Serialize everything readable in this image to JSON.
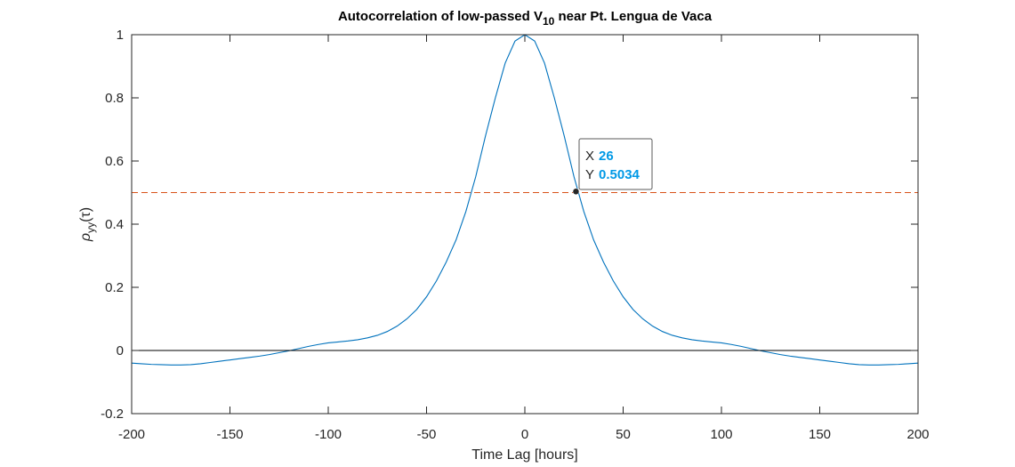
{
  "chart_data": {
    "type": "line",
    "title": {
      "main": "Autocorrelation of low-passed V",
      "subscript": "10",
      "tail": " near Pt. Lengua de Vaca"
    },
    "xlabel": "Time Lag [hours]",
    "ylabel": {
      "symbol": "ρ",
      "subscript": "yy",
      "arg": "(τ)"
    },
    "xlim": [
      -200,
      200
    ],
    "ylim": [
      -0.2,
      1
    ],
    "xticks": [
      -200,
      -150,
      -100,
      -50,
      0,
      50,
      100,
      150,
      200
    ],
    "yticks": [
      -0.2,
      0,
      0.2,
      0.4,
      0.6,
      0.8,
      1
    ],
    "xtick_labels": [
      "-200",
      "-150",
      "-100",
      "-50",
      "0",
      "50",
      "100",
      "150",
      "200"
    ],
    "ytick_labels": [
      "-0.2",
      "0",
      "0.2",
      "0.4",
      "0.6",
      "0.8",
      "1"
    ],
    "grid": false,
    "series": [
      {
        "color": "#0072bd",
        "x": [
          0,
          5,
          10,
          15,
          20,
          25,
          30,
          35,
          40,
          45,
          50,
          55,
          60,
          65,
          70,
          75,
          80,
          85,
          90,
          95,
          100,
          105,
          110,
          115,
          120,
          125,
          130,
          135,
          140,
          145,
          150,
          155,
          160,
          165,
          170,
          175,
          180,
          185,
          190,
          195,
          200
        ],
        "y": [
          1.0,
          0.98,
          0.91,
          0.8,
          0.68,
          0.55,
          0.44,
          0.35,
          0.28,
          0.22,
          0.17,
          0.13,
          0.1,
          0.077,
          0.06,
          0.048,
          0.04,
          0.034,
          0.03,
          0.027,
          0.024,
          0.019,
          0.013,
          0.006,
          -0.001,
          -0.007,
          -0.013,
          -0.018,
          -0.022,
          -0.026,
          -0.03,
          -0.034,
          -0.038,
          -0.042,
          -0.045,
          -0.046,
          -0.046,
          -0.045,
          -0.044,
          -0.042,
          -0.04
        ],
        "symmetric": true
      }
    ],
    "reference_lines": [
      {
        "y": 0.5,
        "color": "#d95319",
        "style": "dashed"
      },
      {
        "y": 0,
        "color": "#000000",
        "style": "solid"
      }
    ],
    "datatip": {
      "x_label": "X",
      "x_value": "26",
      "y_label": "Y",
      "y_value": "0.5034",
      "x": 26,
      "y": 0.5034,
      "value_color": "#0099e6"
    }
  }
}
